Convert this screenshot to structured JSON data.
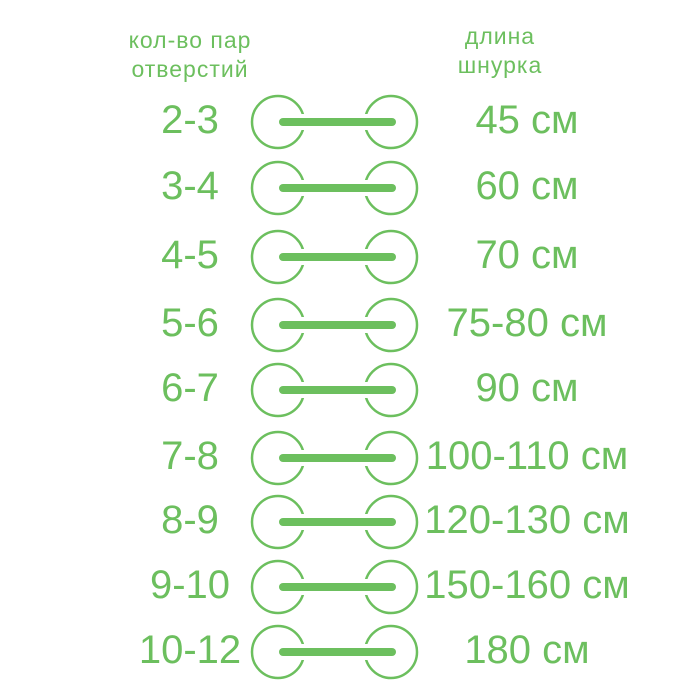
{
  "header": {
    "left_line1": "кол-во пар",
    "left_line2": "отверстий",
    "right_line1": "длина",
    "right_line2": "шнурка"
  },
  "colors": {
    "accent": "#6cbf5e"
  },
  "rows": [
    {
      "pairs": "2-3",
      "length": "45 см"
    },
    {
      "pairs": "3-4",
      "length": "60 см"
    },
    {
      "pairs": "4-5",
      "length": "70 см"
    },
    {
      "pairs": "5-6",
      "length": "75-80 см"
    },
    {
      "pairs": "6-7",
      "length": "90 см"
    },
    {
      "pairs": "7-8",
      "length": "100-110 см"
    },
    {
      "pairs": "8-9",
      "length": "120-130 см"
    },
    {
      "pairs": "9-10",
      "length": "150-160 см"
    },
    {
      "pairs": "10-12",
      "length": "180 см"
    }
  ]
}
